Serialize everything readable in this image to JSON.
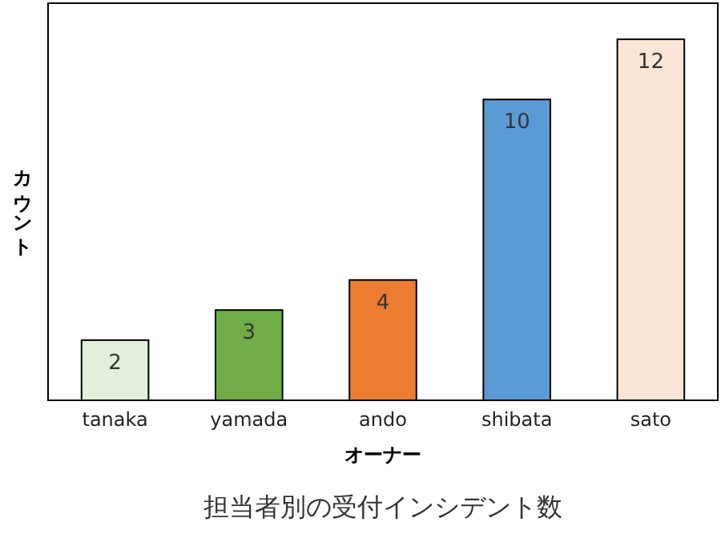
{
  "chart_data": {
    "type": "bar",
    "title": "担当者別の受付インシデント数",
    "xlabel": "オーナー",
    "ylabel": "カウント",
    "categories": [
      "tanaka",
      "yamada",
      "ando",
      "shibata",
      "sato"
    ],
    "values": [
      2,
      3,
      4,
      10,
      12
    ],
    "colors": [
      "#e2efda",
      "#70ad47",
      "#ed7d31",
      "#5b9bd5",
      "#fbe5d6"
    ],
    "data_labels": true
  }
}
